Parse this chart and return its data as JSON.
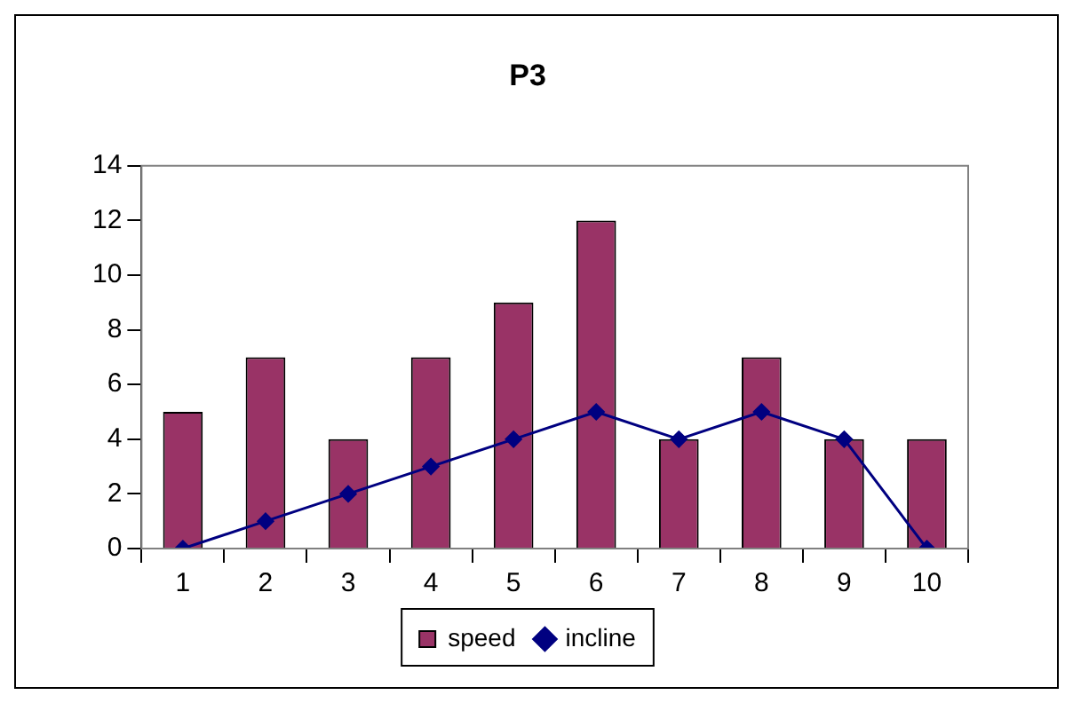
{
  "chart_data": {
    "type": "bar",
    "title": "P3",
    "categories": [
      "1",
      "2",
      "3",
      "4",
      "5",
      "6",
      "7",
      "8",
      "9",
      "10"
    ],
    "series": [
      {
        "name": "speed",
        "color": "#993366",
        "values": [
          5,
          7,
          4,
          7,
          9,
          12,
          4,
          7,
          4,
          4
        ]
      },
      {
        "name": "incline",
        "type": "line",
        "color": "#000080",
        "marker": "diamond",
        "values": [
          0,
          1,
          2,
          3,
          4,
          5,
          4,
          5,
          4,
          0
        ]
      }
    ],
    "ylim": [
      0,
      14
    ],
    "yticks": [
      0,
      2,
      4,
      6,
      8,
      10,
      12,
      14
    ],
    "grid": false,
    "legend": "bottom"
  }
}
